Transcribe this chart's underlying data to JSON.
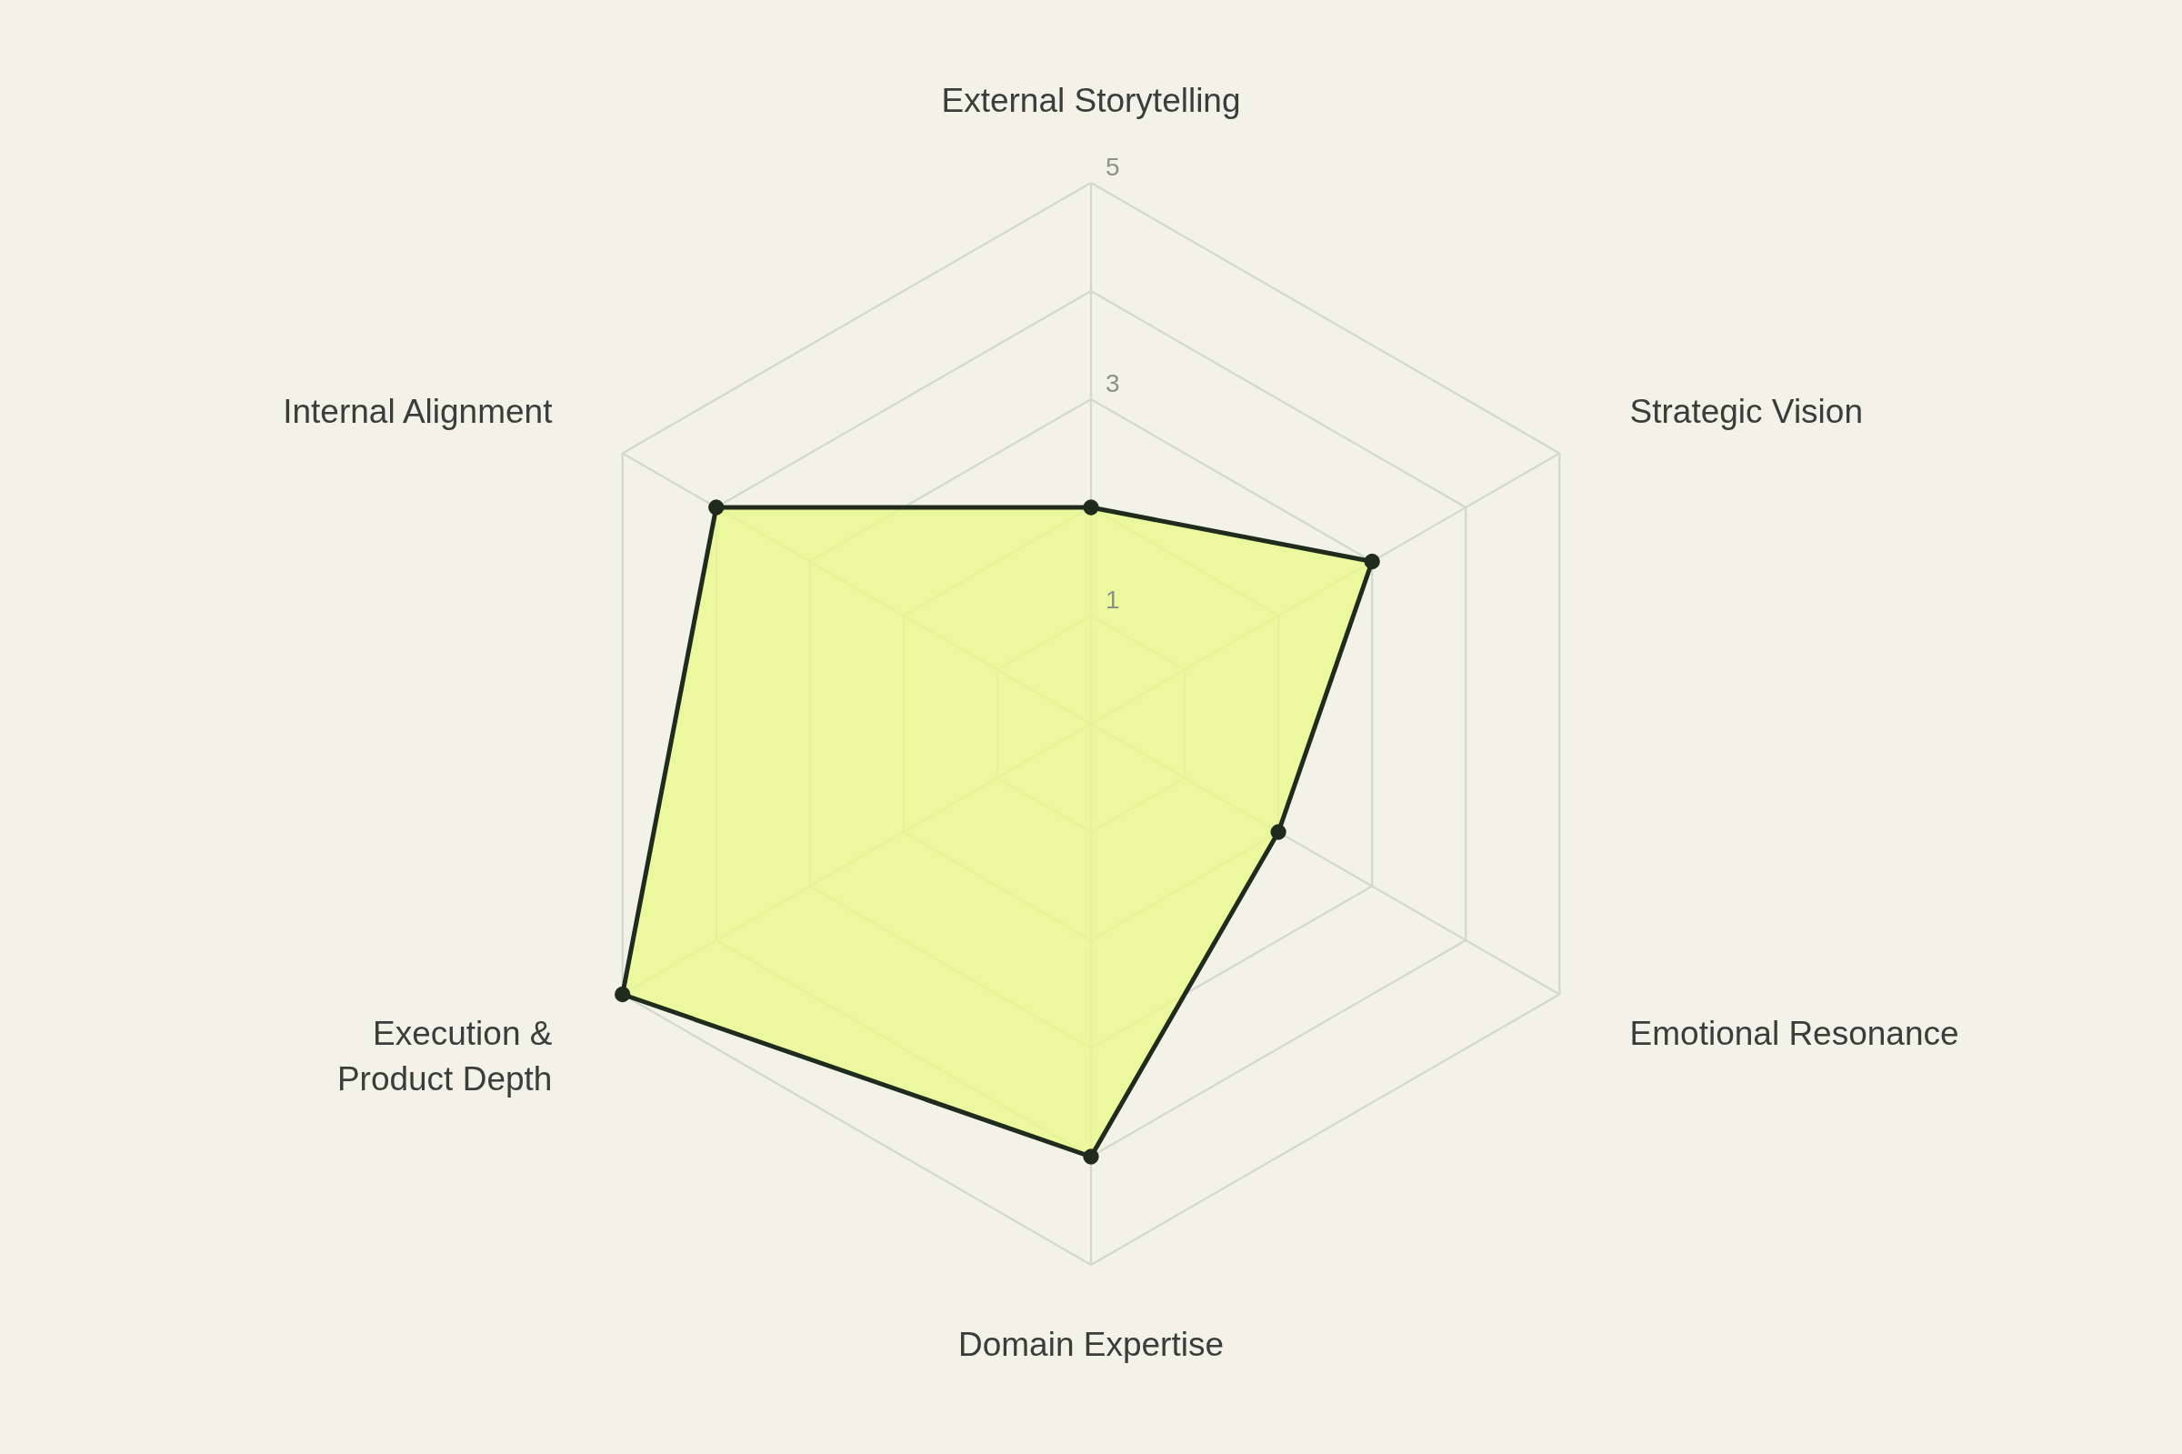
{
  "chart_data": {
    "type": "radar",
    "categories": [
      "External Storytelling",
      "Strategic Vision",
      "Emotional Resonance",
      "Domain Expertise",
      "Execution & Product Depth",
      "Internal Alignment"
    ],
    "series": [
      {
        "color": "#1f2b1d",
        "values": [
          2,
          3,
          2,
          4,
          5,
          4
        ]
      }
    ],
    "ylim": [
      0,
      5
    ],
    "yticks": [
      1,
      3,
      5
    ],
    "grid": true,
    "marker": "circle",
    "line_style": "solid"
  }
}
